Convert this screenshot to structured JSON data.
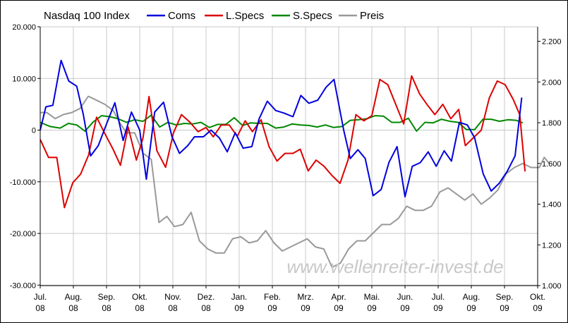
{
  "chart_data": {
    "type": "line",
    "title": "Nasdaq 100 Index",
    "watermark": "www.wellenreiter-invest.de",
    "x_ticks": [
      "Jul. 08",
      "Aug. 08",
      "Sep. 08",
      "Okt. 08",
      "Nov. 08",
      "Dez. 08",
      "Jan. 09",
      "Feb. 09",
      "Mrz. 09",
      "Apr. 09",
      "Mai. 09",
      "Jun. 09",
      "Jul. 09",
      "Aug. 09",
      "Sep. 09",
      "Okt. 09"
    ],
    "y_left": {
      "ticks": [
        "20.000",
        "10.000",
        "0",
        "-10.000",
        "-20.000",
        "-30.000"
      ],
      "values": [
        20000,
        10000,
        0,
        -10000,
        -20000,
        -30000
      ],
      "ylim": [
        -30000,
        20000
      ]
    },
    "y_right": {
      "ticks": [
        "2.200",
        "2.000",
        "1.800",
        "1.600",
        "1.400",
        "1.200",
        "1.000"
      ],
      "values": [
        2200,
        2000,
        1800,
        1600,
        1400,
        1200,
        1000
      ],
      "ylim": [
        1000,
        2260
      ]
    },
    "grid": true,
    "legend_placement": "top",
    "x_range": [
      0,
      15
    ],
    "series": [
      {
        "name": "Coms",
        "color": "#0000dd",
        "axis": "left",
        "points": [
          [
            0.0,
            0
          ],
          [
            0.17,
            4500
          ],
          [
            0.38,
            4800
          ],
          [
            0.63,
            13500
          ],
          [
            0.86,
            9500
          ],
          [
            1.1,
            8500
          ],
          [
            1.3,
            3000
          ],
          [
            1.52,
            -5000
          ],
          [
            1.75,
            -3000
          ],
          [
            2.0,
            1200
          ],
          [
            2.25,
            5300
          ],
          [
            2.5,
            -2000
          ],
          [
            2.75,
            3500
          ],
          [
            3.0,
            0
          ],
          [
            3.2,
            -9500
          ],
          [
            3.45,
            3500
          ],
          [
            3.72,
            5400
          ],
          [
            3.97,
            -1200
          ],
          [
            4.2,
            -4500
          ],
          [
            4.45,
            -3000
          ],
          [
            4.65,
            -1300
          ],
          [
            4.92,
            -1300
          ],
          [
            5.15,
            0
          ],
          [
            5.4,
            -1500
          ],
          [
            5.64,
            -4200
          ],
          [
            5.88,
            -500
          ],
          [
            6.12,
            -3500
          ],
          [
            6.38,
            -3200
          ],
          [
            6.6,
            2200
          ],
          [
            6.85,
            5600
          ],
          [
            7.1,
            3800
          ],
          [
            7.35,
            3300
          ],
          [
            7.62,
            2600
          ],
          [
            7.86,
            6700
          ],
          [
            8.1,
            5200
          ],
          [
            8.37,
            5800
          ],
          [
            8.62,
            8300
          ],
          [
            8.86,
            9800
          ],
          [
            9.15,
            0
          ],
          [
            9.35,
            -5500
          ],
          [
            9.58,
            -3800
          ],
          [
            9.8,
            -5500
          ],
          [
            10.04,
            -12700
          ],
          [
            10.28,
            -11500
          ],
          [
            10.52,
            -6200
          ],
          [
            10.76,
            -3200
          ],
          [
            11.0,
            -12900
          ],
          [
            11.22,
            -7000
          ],
          [
            11.46,
            -6300
          ],
          [
            11.7,
            -4200
          ],
          [
            11.94,
            -7000
          ],
          [
            12.18,
            -4000
          ],
          [
            12.4,
            -6000
          ],
          [
            12.64,
            1500
          ],
          [
            12.88,
            1000
          ],
          [
            13.1,
            -1500
          ],
          [
            13.36,
            -8500
          ],
          [
            13.6,
            -11800
          ],
          [
            13.84,
            -10300
          ],
          [
            14.08,
            -8000
          ],
          [
            14.32,
            -5000
          ],
          [
            14.52,
            6300
          ]
        ]
      },
      {
        "name": "L.Specs",
        "color": "#dd0000",
        "axis": "left",
        "points": [
          [
            0.0,
            -1800
          ],
          [
            0.25,
            -5300
          ],
          [
            0.5,
            -5300
          ],
          [
            0.73,
            -15000
          ],
          [
            0.98,
            -10200
          ],
          [
            1.22,
            -8500
          ],
          [
            1.46,
            -4800
          ],
          [
            1.7,
            2500
          ],
          [
            1.96,
            -800
          ],
          [
            2.18,
            -3500
          ],
          [
            2.42,
            -6800
          ],
          [
            2.65,
            600
          ],
          [
            2.9,
            -5800
          ],
          [
            3.1,
            -1500
          ],
          [
            3.28,
            6500
          ],
          [
            3.52,
            -4000
          ],
          [
            3.78,
            -7200
          ],
          [
            4.02,
            -500
          ],
          [
            4.26,
            3000
          ],
          [
            4.52,
            1500
          ],
          [
            4.76,
            -300
          ],
          [
            5.0,
            500
          ],
          [
            5.22,
            -1300
          ],
          [
            5.46,
            1000
          ],
          [
            5.7,
            1000
          ],
          [
            5.94,
            -1200
          ],
          [
            6.18,
            1800
          ],
          [
            6.4,
            -300
          ],
          [
            6.66,
            2000
          ],
          [
            6.9,
            -3200
          ],
          [
            7.14,
            -6000
          ],
          [
            7.38,
            -4500
          ],
          [
            7.62,
            -4500
          ],
          [
            7.84,
            -3700
          ],
          [
            8.08,
            -7900
          ],
          [
            8.32,
            -5800
          ],
          [
            8.56,
            -7000
          ],
          [
            8.8,
            -8800
          ],
          [
            9.04,
            -10300
          ],
          [
            9.28,
            -5800
          ],
          [
            9.52,
            3000
          ],
          [
            9.76,
            1800
          ],
          [
            10.0,
            2800
          ],
          [
            10.24,
            9800
          ],
          [
            10.48,
            8800
          ],
          [
            10.72,
            5000
          ],
          [
            10.96,
            1200
          ],
          [
            11.2,
            10500
          ],
          [
            11.44,
            7000
          ],
          [
            11.68,
            4800
          ],
          [
            11.9,
            3000
          ],
          [
            12.14,
            5000
          ],
          [
            12.38,
            2200
          ],
          [
            12.62,
            4000
          ],
          [
            12.82,
            -3000
          ],
          [
            13.06,
            -1500
          ],
          [
            13.3,
            0
          ],
          [
            13.54,
            6200
          ],
          [
            13.78,
            9500
          ],
          [
            14.02,
            8800
          ],
          [
            14.26,
            6000
          ],
          [
            14.46,
            3000
          ],
          [
            14.62,
            -8000
          ]
        ]
      },
      {
        "name": "S.Specs",
        "color": "#008800",
        "axis": "left",
        "points": [
          [
            0.0,
            1500
          ],
          [
            0.3,
            700
          ],
          [
            0.6,
            400
          ],
          [
            0.85,
            1300
          ],
          [
            1.1,
            1000
          ],
          [
            1.35,
            -200
          ],
          [
            1.6,
            1600
          ],
          [
            1.85,
            2800
          ],
          [
            2.1,
            2600
          ],
          [
            2.35,
            2200
          ],
          [
            2.6,
            1500
          ],
          [
            2.85,
            2000
          ],
          [
            3.1,
            1700
          ],
          [
            3.35,
            2900
          ],
          [
            3.6,
            600
          ],
          [
            3.85,
            1500
          ],
          [
            4.1,
            1000
          ],
          [
            4.35,
            1300
          ],
          [
            4.6,
            1200
          ],
          [
            4.85,
            1500
          ],
          [
            5.1,
            500
          ],
          [
            5.35,
            1100
          ],
          [
            5.6,
            1100
          ],
          [
            5.85,
            2400
          ],
          [
            6.1,
            900
          ],
          [
            6.35,
            1400
          ],
          [
            6.6,
            1300
          ],
          [
            6.85,
            1300
          ],
          [
            7.1,
            400
          ],
          [
            7.35,
            600
          ],
          [
            7.6,
            1200
          ],
          [
            7.85,
            1000
          ],
          [
            8.1,
            900
          ],
          [
            8.35,
            600
          ],
          [
            8.6,
            1000
          ],
          [
            8.85,
            500
          ],
          [
            9.1,
            700
          ],
          [
            9.35,
            1900
          ],
          [
            9.6,
            2000
          ],
          [
            9.85,
            2200
          ],
          [
            10.1,
            2800
          ],
          [
            10.35,
            2700
          ],
          [
            10.6,
            1500
          ],
          [
            10.85,
            1500
          ],
          [
            11.1,
            2300
          ],
          [
            11.35,
            -200
          ],
          [
            11.6,
            1500
          ],
          [
            11.85,
            1400
          ],
          [
            12.1,
            2100
          ],
          [
            12.35,
            1700
          ],
          [
            12.6,
            1500
          ],
          [
            12.85,
            100
          ],
          [
            13.1,
            100
          ],
          [
            13.35,
            2100
          ],
          [
            13.6,
            2100
          ],
          [
            13.85,
            1700
          ],
          [
            14.1,
            2000
          ],
          [
            14.35,
            1900
          ],
          [
            14.55,
            1400
          ]
        ]
      },
      {
        "name": "Preis",
        "color": "#999999",
        "axis": "right",
        "points": [
          [
            0.0,
            1850
          ],
          [
            0.2,
            1850
          ],
          [
            0.45,
            1820
          ],
          [
            0.7,
            1840
          ],
          [
            0.95,
            1850
          ],
          [
            1.2,
            1870
          ],
          [
            1.45,
            1930
          ],
          [
            1.7,
            1910
          ],
          [
            1.95,
            1890
          ],
          [
            2.2,
            1860
          ],
          [
            2.4,
            1800
          ],
          [
            2.6,
            1750
          ],
          [
            2.85,
            1750
          ],
          [
            3.1,
            1650
          ],
          [
            3.35,
            1620
          ],
          [
            3.58,
            1310
          ],
          [
            3.82,
            1340
          ],
          [
            4.05,
            1290
          ],
          [
            4.3,
            1300
          ],
          [
            4.55,
            1360
          ],
          [
            4.8,
            1220
          ],
          [
            5.05,
            1180
          ],
          [
            5.3,
            1160
          ],
          [
            5.55,
            1160
          ],
          [
            5.8,
            1230
          ],
          [
            6.05,
            1240
          ],
          [
            6.3,
            1210
          ],
          [
            6.55,
            1220
          ],
          [
            6.8,
            1270
          ],
          [
            7.05,
            1210
          ],
          [
            7.3,
            1170
          ],
          [
            7.55,
            1190
          ],
          [
            7.8,
            1210
          ],
          [
            8.05,
            1230
          ],
          [
            8.3,
            1190
          ],
          [
            8.55,
            1180
          ],
          [
            8.8,
            1090
          ],
          [
            9.05,
            1110
          ],
          [
            9.3,
            1180
          ],
          [
            9.55,
            1220
          ],
          [
            9.8,
            1220
          ],
          [
            10.05,
            1260
          ],
          [
            10.3,
            1300
          ],
          [
            10.55,
            1300
          ],
          [
            10.8,
            1330
          ],
          [
            11.05,
            1390
          ],
          [
            11.3,
            1370
          ],
          [
            11.55,
            1370
          ],
          [
            11.8,
            1390
          ],
          [
            12.05,
            1460
          ],
          [
            12.3,
            1480
          ],
          [
            12.55,
            1450
          ],
          [
            12.8,
            1420
          ],
          [
            13.05,
            1450
          ],
          [
            13.3,
            1400
          ],
          [
            13.55,
            1430
          ],
          [
            13.8,
            1470
          ],
          [
            14.05,
            1550
          ],
          [
            14.3,
            1580
          ],
          [
            14.55,
            1600
          ],
          [
            14.8,
            1580
          ],
          [
            15.05,
            1580
          ],
          [
            15.2,
            1630
          ],
          [
            15.35,
            1600
          ]
        ]
      }
    ]
  }
}
